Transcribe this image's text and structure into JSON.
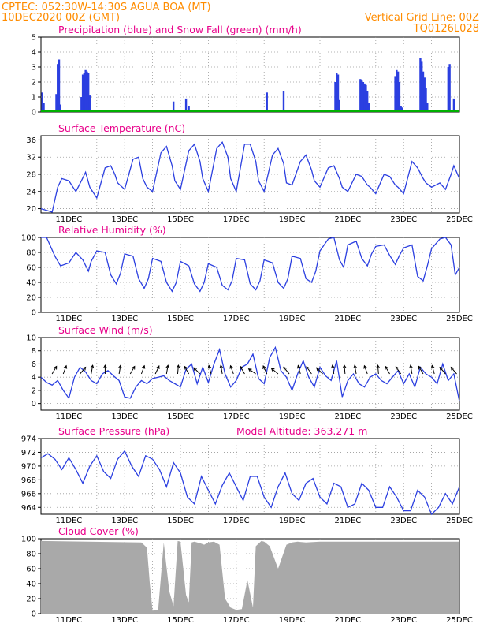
{
  "header": {
    "line1": "CPTEC:   052:30W-14:30S   AGUA BOA (MT)",
    "line2": "10DEC2020 00Z (GMT)",
    "grid_note": "Vertical Grid Line: 00Z",
    "code": "TQ0126L028"
  },
  "colors": {
    "header": "#ff8c00",
    "title": "#e8008a",
    "series": "#2b3fe0",
    "snow": "#00b000",
    "cloud": "#a9a9a9",
    "wind_arrow": "#000000"
  },
  "chart_data": [
    {
      "id": "precip",
      "type": "bar",
      "title": "Precipitation (blue) and Snow Fall (green) (mm/h)",
      "ylim": [
        0,
        5
      ],
      "yticks": [
        0,
        1,
        2,
        3,
        4,
        5
      ],
      "show_dates": false,
      "x_start_day": 10,
      "x_end_day": 25,
      "series": [
        {
          "name": "Precipitation",
          "x": [
            10.05,
            10.1,
            10.55,
            10.6,
            10.65,
            10.7,
            11.45,
            11.5,
            11.55,
            11.6,
            11.65,
            11.7,
            11.75,
            14.75,
            15.2,
            15.3,
            18.1,
            18.7,
            20.55,
            20.6,
            20.65,
            20.7,
            21.45,
            21.5,
            21.55,
            21.6,
            21.65,
            21.7,
            21.75,
            22.7,
            22.75,
            22.8,
            22.85,
            22.9,
            22.95,
            23.6,
            23.65,
            23.7,
            23.75,
            23.8,
            23.85,
            24.6,
            24.65,
            24.8
          ],
          "values": [
            1.3,
            0.6,
            1.2,
            3.2,
            3.5,
            0.5,
            1.0,
            2.5,
            2.6,
            2.8,
            2.7,
            2.6,
            1.1,
            0.7,
            0.9,
            0.4,
            1.3,
            1.4,
            2.0,
            2.6,
            2.5,
            0.8,
            2.2,
            2.1,
            2.0,
            1.9,
            1.8,
            1.4,
            0.6,
            2.4,
            2.8,
            2.7,
            2.0,
            0.4,
            0.3,
            3.6,
            3.4,
            2.7,
            2.3,
            1.6,
            0.6,
            3.0,
            3.2,
            0.9
          ]
        },
        {
          "name": "Snow Fall",
          "x": [
            10.0,
            25.0
          ],
          "values": [
            0,
            0
          ]
        }
      ]
    },
    {
      "id": "temp",
      "type": "line",
      "title": "Surface Temperature (nC)",
      "ylim": [
        19,
        37
      ],
      "yticks": [
        20,
        24,
        28,
        32,
        36
      ],
      "show_dates": true,
      "x_start_day": 10,
      "x_end_day": 25,
      "series": [
        {
          "name": "Temperature",
          "x": [
            10.0,
            10.25,
            10.4,
            10.6,
            10.75,
            11.0,
            11.25,
            11.45,
            11.6,
            11.75,
            12.0,
            12.3,
            12.5,
            12.65,
            12.75,
            13.0,
            13.3,
            13.5,
            13.65,
            13.8,
            14.0,
            14.3,
            14.5,
            14.7,
            14.8,
            15.0,
            15.3,
            15.5,
            15.7,
            15.8,
            16.0,
            16.3,
            16.5,
            16.7,
            16.8,
            17.0,
            17.3,
            17.5,
            17.7,
            17.8,
            18.0,
            18.3,
            18.5,
            18.7,
            18.8,
            19.0,
            19.3,
            19.5,
            19.7,
            19.8,
            20.0,
            20.3,
            20.5,
            20.7,
            20.8,
            21.0,
            21.3,
            21.5,
            21.7,
            21.8,
            22.0,
            22.3,
            22.5,
            22.7,
            22.8,
            23.0,
            23.3,
            23.5,
            23.7,
            23.8,
            24.0,
            24.3,
            24.5,
            24.7,
            24.8,
            25.0
          ],
          "values": [
            20.0,
            19.5,
            19.2,
            25.0,
            27.0,
            26.5,
            24.0,
            26.5,
            28.5,
            25.0,
            22.5,
            29.5,
            30.0,
            28.0,
            26.0,
            24.5,
            31.5,
            32.0,
            27.0,
            25.0,
            24.0,
            33.0,
            34.5,
            30.0,
            26.5,
            24.5,
            33.5,
            35.0,
            31.0,
            27.0,
            24.0,
            34.0,
            35.5,
            32.0,
            27.0,
            24.0,
            35.0,
            35.0,
            31.0,
            26.5,
            24.0,
            32.5,
            34.0,
            30.5,
            26.0,
            25.5,
            31.0,
            32.5,
            29.0,
            26.5,
            25.0,
            29.5,
            30.0,
            27.0,
            25.0,
            24.0,
            28.0,
            27.5,
            25.5,
            25.0,
            23.5,
            28.0,
            27.5,
            25.5,
            25.0,
            23.5,
            31.0,
            29.5,
            27.0,
            26.0,
            25.0,
            26.0,
            24.5,
            28.0,
            30.0,
            27.0
          ]
        }
      ]
    },
    {
      "id": "rh",
      "type": "line",
      "title": "Relative Humidity (%)",
      "ylim": [
        0,
        100
      ],
      "yticks": [
        0,
        20,
        40,
        60,
        80,
        100
      ],
      "show_dates": true,
      "x_start_day": 10,
      "x_end_day": 25,
      "series": [
        {
          "name": "Relative Humidity",
          "x": [
            10.0,
            10.2,
            10.5,
            10.7,
            11.0,
            11.25,
            11.5,
            11.7,
            11.8,
            12.0,
            12.3,
            12.5,
            12.7,
            12.85,
            13.0,
            13.3,
            13.5,
            13.7,
            13.85,
            14.0,
            14.3,
            14.5,
            14.7,
            14.85,
            15.0,
            15.3,
            15.5,
            15.7,
            15.85,
            16.0,
            16.3,
            16.5,
            16.7,
            16.85,
            17.0,
            17.3,
            17.5,
            17.7,
            17.85,
            18.0,
            18.3,
            18.5,
            18.7,
            18.85,
            19.0,
            19.3,
            19.5,
            19.7,
            19.85,
            20.0,
            20.3,
            20.5,
            20.7,
            20.85,
            21.0,
            21.3,
            21.5,
            21.7,
            21.85,
            22.0,
            22.3,
            22.5,
            22.7,
            22.85,
            23.0,
            23.3,
            23.5,
            23.7,
            23.85,
            24.0,
            24.3,
            24.5,
            24.7,
            24.85,
            25.0
          ],
          "values": [
            100,
            100,
            75,
            62,
            66,
            80,
            70,
            55,
            68,
            82,
            80,
            50,
            38,
            52,
            78,
            75,
            45,
            32,
            45,
            72,
            68,
            40,
            28,
            40,
            68,
            62,
            38,
            28,
            40,
            65,
            60,
            36,
            30,
            42,
            72,
            70,
            38,
            30,
            42,
            70,
            66,
            40,
            32,
            45,
            75,
            72,
            45,
            40,
            55,
            82,
            98,
            100,
            70,
            60,
            90,
            95,
            72,
            62,
            78,
            88,
            90,
            76,
            64,
            76,
            86,
            90,
            48,
            42,
            62,
            85,
            98,
            100,
            90,
            50,
            60
          ]
        }
      ]
    },
    {
      "id": "wind",
      "type": "line",
      "title": "Surface Wind (m/s)",
      "ylim": [
        -1,
        10
      ],
      "yticks": [
        0,
        2,
        4,
        6,
        8,
        10
      ],
      "show_dates": true,
      "x_start_day": 10,
      "x_end_day": 25,
      "series": [
        {
          "name": "Wind Speed",
          "x": [
            10.0,
            10.2,
            10.4,
            10.6,
            10.8,
            11.0,
            11.2,
            11.4,
            11.6,
            11.8,
            12.0,
            12.2,
            12.4,
            12.6,
            12.8,
            13.0,
            13.2,
            13.4,
            13.6,
            13.8,
            14.0,
            14.2,
            14.4,
            14.6,
            14.8,
            15.0,
            15.2,
            15.4,
            15.6,
            15.8,
            16.0,
            16.2,
            16.4,
            16.6,
            16.8,
            17.0,
            17.2,
            17.4,
            17.6,
            17.8,
            18.0,
            18.2,
            18.4,
            18.6,
            18.8,
            19.0,
            19.2,
            19.4,
            19.6,
            19.8,
            20.0,
            20.2,
            20.4,
            20.6,
            20.8,
            21.0,
            21.2,
            21.4,
            21.6,
            21.8,
            22.0,
            22.2,
            22.4,
            22.6,
            22.8,
            23.0,
            23.2,
            23.4,
            23.6,
            23.8,
            24.0,
            24.2,
            24.4,
            24.6,
            24.8,
            25.0
          ],
          "values": [
            4.0,
            3.2,
            2.8,
            3.5,
            2.0,
            0.8,
            4.0,
            5.5,
            4.8,
            3.5,
            3.0,
            4.5,
            5.0,
            4.2,
            3.5,
            1.0,
            0.8,
            2.5,
            3.5,
            3.0,
            3.8,
            4.0,
            4.2,
            3.5,
            3.0,
            2.5,
            5.2,
            6.0,
            3.0,
            5.5,
            3.2,
            6.0,
            8.2,
            4.5,
            2.5,
            3.5,
            5.5,
            6.0,
            7.5,
            3.8,
            3.0,
            7.0,
            8.5,
            5.0,
            4.0,
            2.0,
            4.5,
            6.5,
            4.0,
            2.5,
            5.5,
            4.2,
            3.5,
            6.5,
            1.0,
            3.5,
            4.5,
            3.0,
            2.5,
            4.0,
            4.5,
            3.5,
            3.0,
            4.0,
            5.0,
            3.0,
            4.5,
            2.5,
            5.5,
            4.5,
            4.0,
            3.0,
            6.0,
            3.5,
            4.5,
            0.3
          ]
        },
        {
          "name": "Wind Direction",
          "x": [
            10.4,
            10.8,
            11.4,
            11.8,
            12.3,
            12.8,
            13.2,
            13.6,
            14.1,
            14.5,
            14.9,
            15.3,
            15.7,
            16.1,
            16.5,
            16.9,
            17.3,
            17.7,
            18.1,
            18.5,
            18.9,
            19.3,
            19.7,
            20.1,
            20.5,
            20.9,
            21.3,
            21.7,
            22.1,
            22.5,
            22.9,
            23.3,
            23.7,
            24.1,
            24.5,
            24.9
          ],
          "values": [
            120,
            110,
            130,
            100,
            90,
            100,
            120,
            110,
            115,
            100,
            95,
            60,
            45,
            75,
            80,
            70,
            60,
            35,
            65,
            40,
            50,
            75,
            55,
            45,
            80,
            85,
            80,
            70,
            85,
            60,
            55,
            80,
            60,
            75,
            50,
            50
          ]
        }
      ]
    },
    {
      "id": "pressure",
      "type": "line",
      "title": "Surface Pressure (hPa)",
      "subtitle": "Model Altitude: 363.271 m",
      "ylim": [
        963,
        974
      ],
      "yticks": [
        964,
        966,
        968,
        970,
        972,
        974
      ],
      "show_dates": true,
      "x_start_day": 10,
      "x_end_day": 25,
      "series": [
        {
          "name": "Pressure",
          "x": [
            10.0,
            10.25,
            10.5,
            10.75,
            11.0,
            11.25,
            11.5,
            11.75,
            12.0,
            12.25,
            12.5,
            12.75,
            13.0,
            13.25,
            13.5,
            13.75,
            14.0,
            14.25,
            14.5,
            14.75,
            15.0,
            15.25,
            15.5,
            15.75,
            16.0,
            16.25,
            16.5,
            16.75,
            17.0,
            17.25,
            17.5,
            17.75,
            18.0,
            18.25,
            18.5,
            18.75,
            19.0,
            19.25,
            19.5,
            19.75,
            20.0,
            20.25,
            20.5,
            20.75,
            21.0,
            21.25,
            21.5,
            21.75,
            22.0,
            22.25,
            22.5,
            22.75,
            23.0,
            23.25,
            23.5,
            23.75,
            24.0,
            24.25,
            24.5,
            24.75,
            25.0
          ],
          "values": [
            971.2,
            971.8,
            971.0,
            969.5,
            971.2,
            969.5,
            967.5,
            970.0,
            971.5,
            969.2,
            968.2,
            971.0,
            972.2,
            970.0,
            968.5,
            971.5,
            971.0,
            969.5,
            967.0,
            970.5,
            969.0,
            965.5,
            964.5,
            968.5,
            966.5,
            964.5,
            967.2,
            969.0,
            967.0,
            965.0,
            968.5,
            968.5,
            965.5,
            964.0,
            967.0,
            969.0,
            966.0,
            965.0,
            967.5,
            968.2,
            965.5,
            964.5,
            967.5,
            967.0,
            964.0,
            964.5,
            967.5,
            966.5,
            964.0,
            964.0,
            967.0,
            965.5,
            963.5,
            963.5,
            966.5,
            965.5,
            963.0,
            964.0,
            966.0,
            964.5,
            967.0
          ]
        }
      ]
    },
    {
      "id": "cloud",
      "type": "area",
      "title": "Cloud Cover (%)",
      "ylim": [
        0,
        100
      ],
      "yticks": [
        0,
        20,
        40,
        60,
        80,
        100
      ],
      "show_dates": true,
      "x_start_day": 10,
      "x_end_day": 25,
      "series": [
        {
          "name": "Cloud Cover",
          "x": [
            10.0,
            13.6,
            13.8,
            13.9,
            14.0,
            14.2,
            14.4,
            14.6,
            14.75,
            14.9,
            15.0,
            15.2,
            15.3,
            15.4,
            15.5,
            15.7,
            15.85,
            16.0,
            16.2,
            16.4,
            16.6,
            16.8,
            17.0,
            17.2,
            17.4,
            17.6,
            17.7,
            17.9,
            18.0,
            18.2,
            18.5,
            18.8,
            19.0,
            19.2,
            19.5,
            20.0,
            21.0,
            22.0,
            23.0,
            24.0,
            25.0
          ],
          "values": [
            97,
            95,
            88,
            40,
            4,
            5,
            95,
            30,
            10,
            97,
            96,
            25,
            15,
            95,
            96,
            94,
            92,
            95,
            96,
            92,
            20,
            8,
            5,
            6,
            45,
            8,
            90,
            97,
            96,
            90,
            60,
            92,
            95,
            96,
            95,
            96,
            96,
            96,
            96,
            96,
            96
          ]
        }
      ]
    }
  ],
  "date_labels": [
    "11DEC",
    "13DEC",
    "15DEC",
    "17DEC",
    "19DEC",
    "21DEC",
    "23DEC",
    "25DEC"
  ]
}
